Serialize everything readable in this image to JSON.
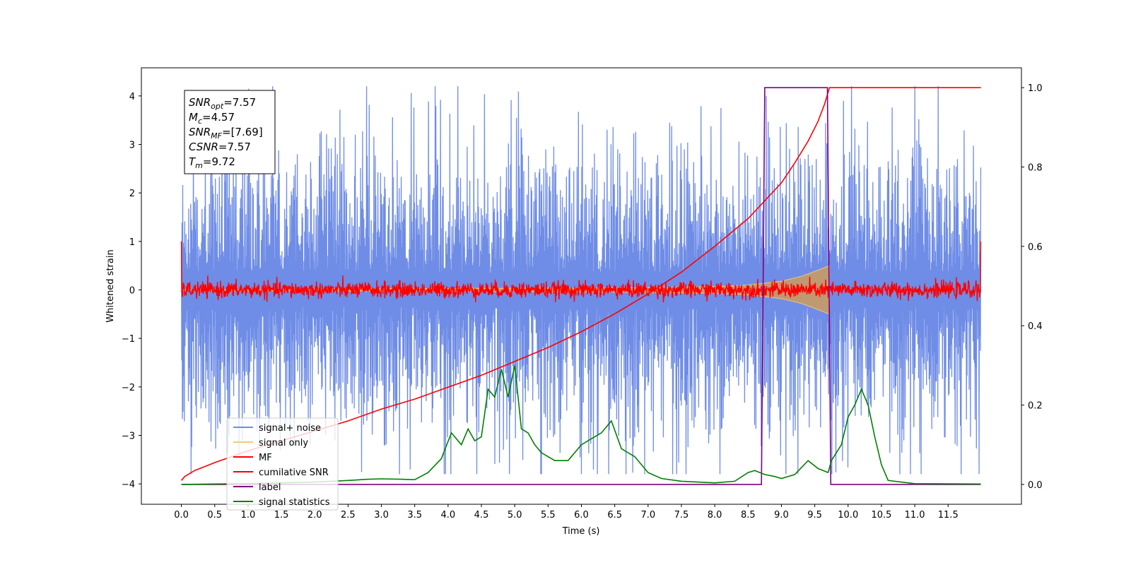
{
  "chart_data": {
    "type": "line",
    "xlabel": "Time (s)",
    "ylabel": "Whitened strain",
    "xlim": [
      -0.6,
      12.6
    ],
    "ylim": [
      -4.42,
      4.58
    ],
    "y2lim": [
      -0.05,
      1.05
    ],
    "xticks": [
      0.0,
      0.5,
      1.0,
      1.5,
      2.0,
      2.5,
      3.0,
      3.5,
      4.0,
      4.5,
      5.0,
      5.5,
      6.0,
      6.5,
      7.0,
      7.5,
      8.0,
      8.5,
      9.0,
      9.5,
      10.0,
      10.5,
      11.0,
      11.5
    ],
    "xtick_labels": [
      "0.0",
      "0.5",
      "1.0",
      "1.5",
      "2.0",
      "2.5",
      "3.0",
      "3.5",
      "4.0",
      "4.5",
      "5.0",
      "5.5",
      "6.0",
      "6.5",
      "7.0",
      "7.5",
      "8.0",
      "8.5",
      "9.0",
      "9.5",
      "10.0",
      "10.5",
      "11.0",
      "11.5"
    ],
    "yticks": [
      -4,
      -3,
      -2,
      -1,
      0,
      1,
      2,
      3,
      4
    ],
    "ytick_labels": [
      "−4",
      "−3",
      "−2",
      "−1",
      "0",
      "1",
      "2",
      "3",
      "4"
    ],
    "y2ticks": [
      0.0,
      0.2,
      0.4,
      0.6,
      0.8,
      1.0
    ],
    "y2tick_labels": [
      "0.0",
      "0.2",
      "0.4",
      "0.6",
      "0.8",
      "1.0"
    ],
    "grid": false,
    "legend_placement": "lower-left",
    "annotation": {
      "lines": [
        {
          "base": "SNR",
          "sub": "opt",
          "value": "=7.57"
        },
        {
          "base": "M",
          "sub": "c",
          "value": "=4.57"
        },
        {
          "base": "SNR",
          "sub": "MF",
          "value": "=[7.69]"
        },
        {
          "base": "CSNR",
          "sub": "",
          "value": "=7.57"
        },
        {
          "base": "T",
          "sub": "m",
          "value": "=9.72"
        }
      ]
    },
    "series": [
      {
        "name": "signal+ noise",
        "axis": "left",
        "color": "#6f8de6",
        "kind": "noise",
        "x_range": [
          0.0,
          11.99
        ],
        "envelope": 2.6,
        "peak_min": -3.8,
        "peak_max": 4.2
      },
      {
        "name": "signal only",
        "axis": "left",
        "color": "#f5c87a",
        "kind": "chirp",
        "x_range": [
          0.0,
          9.72
        ],
        "amp_x": [
          0.0,
          2.0,
          4.0,
          6.0,
          7.0,
          8.0,
          8.5,
          9.0,
          9.3,
          9.5,
          9.72
        ],
        "amp_y": [
          0.01,
          0.02,
          0.03,
          0.04,
          0.05,
          0.07,
          0.1,
          0.18,
          0.28,
          0.38,
          0.5
        ]
      },
      {
        "name": "MF",
        "axis": "left",
        "color": "#ff0000",
        "kind": "mf",
        "x_range": [
          0.0,
          11.99
        ],
        "envelope": 0.15,
        "edge_value": 1.0
      },
      {
        "name": "cumilative SNR",
        "axis": "right",
        "color": "#ff0000",
        "x": [
          0.0,
          0.05,
          0.2,
          0.5,
          1.0,
          1.5,
          2.0,
          2.5,
          3.0,
          3.5,
          4.0,
          4.5,
          5.0,
          5.5,
          6.0,
          6.5,
          7.0,
          7.5,
          8.0,
          8.5,
          9.0,
          9.2,
          9.4,
          9.55,
          9.65,
          9.72,
          11.99
        ],
        "y": [
          0.01,
          0.02,
          0.035,
          0.055,
          0.085,
          0.11,
          0.135,
          0.16,
          0.19,
          0.215,
          0.245,
          0.275,
          0.31,
          0.345,
          0.385,
          0.43,
          0.48,
          0.535,
          0.6,
          0.67,
          0.76,
          0.81,
          0.865,
          0.915,
          0.96,
          1.0,
          1.0
        ]
      },
      {
        "name": "label",
        "axis": "right",
        "color": "#800080",
        "x": [
          0.0,
          8.7,
          8.75,
          9.69,
          9.74,
          11.99
        ],
        "y": [
          0.0,
          0.0,
          1.0,
          1.0,
          0.0,
          0.0
        ]
      },
      {
        "name": "signal statistics",
        "axis": "right",
        "color": "#008000",
        "x": [
          0.0,
          0.5,
          1.0,
          1.5,
          2.0,
          2.5,
          2.8,
          3.0,
          3.3,
          3.5,
          3.7,
          3.9,
          4.05,
          4.2,
          4.3,
          4.4,
          4.5,
          4.6,
          4.7,
          4.8,
          4.9,
          5.0,
          5.1,
          5.2,
          5.3,
          5.4,
          5.5,
          5.6,
          5.8,
          6.0,
          6.1,
          6.3,
          6.45,
          6.6,
          6.7,
          6.8,
          7.0,
          7.2,
          7.5,
          8.0,
          8.3,
          8.5,
          8.6,
          8.75,
          8.9,
          9.0,
          9.2,
          9.4,
          9.55,
          9.7,
          9.75,
          9.9,
          10.0,
          10.1,
          10.2,
          10.3,
          10.4,
          10.5,
          10.6,
          11.0,
          11.99
        ],
        "y": [
          0.0,
          0.001,
          0.002,
          0.004,
          0.006,
          0.01,
          0.013,
          0.014,
          0.013,
          0.012,
          0.03,
          0.065,
          0.13,
          0.1,
          0.14,
          0.11,
          0.12,
          0.24,
          0.22,
          0.29,
          0.22,
          0.3,
          0.14,
          0.13,
          0.1,
          0.08,
          0.07,
          0.06,
          0.06,
          0.1,
          0.11,
          0.13,
          0.16,
          0.09,
          0.08,
          0.07,
          0.03,
          0.015,
          0.008,
          0.004,
          0.008,
          0.03,
          0.035,
          0.025,
          0.02,
          0.015,
          0.025,
          0.06,
          0.04,
          0.03,
          0.06,
          0.1,
          0.17,
          0.2,
          0.24,
          0.2,
          0.12,
          0.05,
          0.01,
          0.002,
          0.001
        ]
      }
    ]
  }
}
